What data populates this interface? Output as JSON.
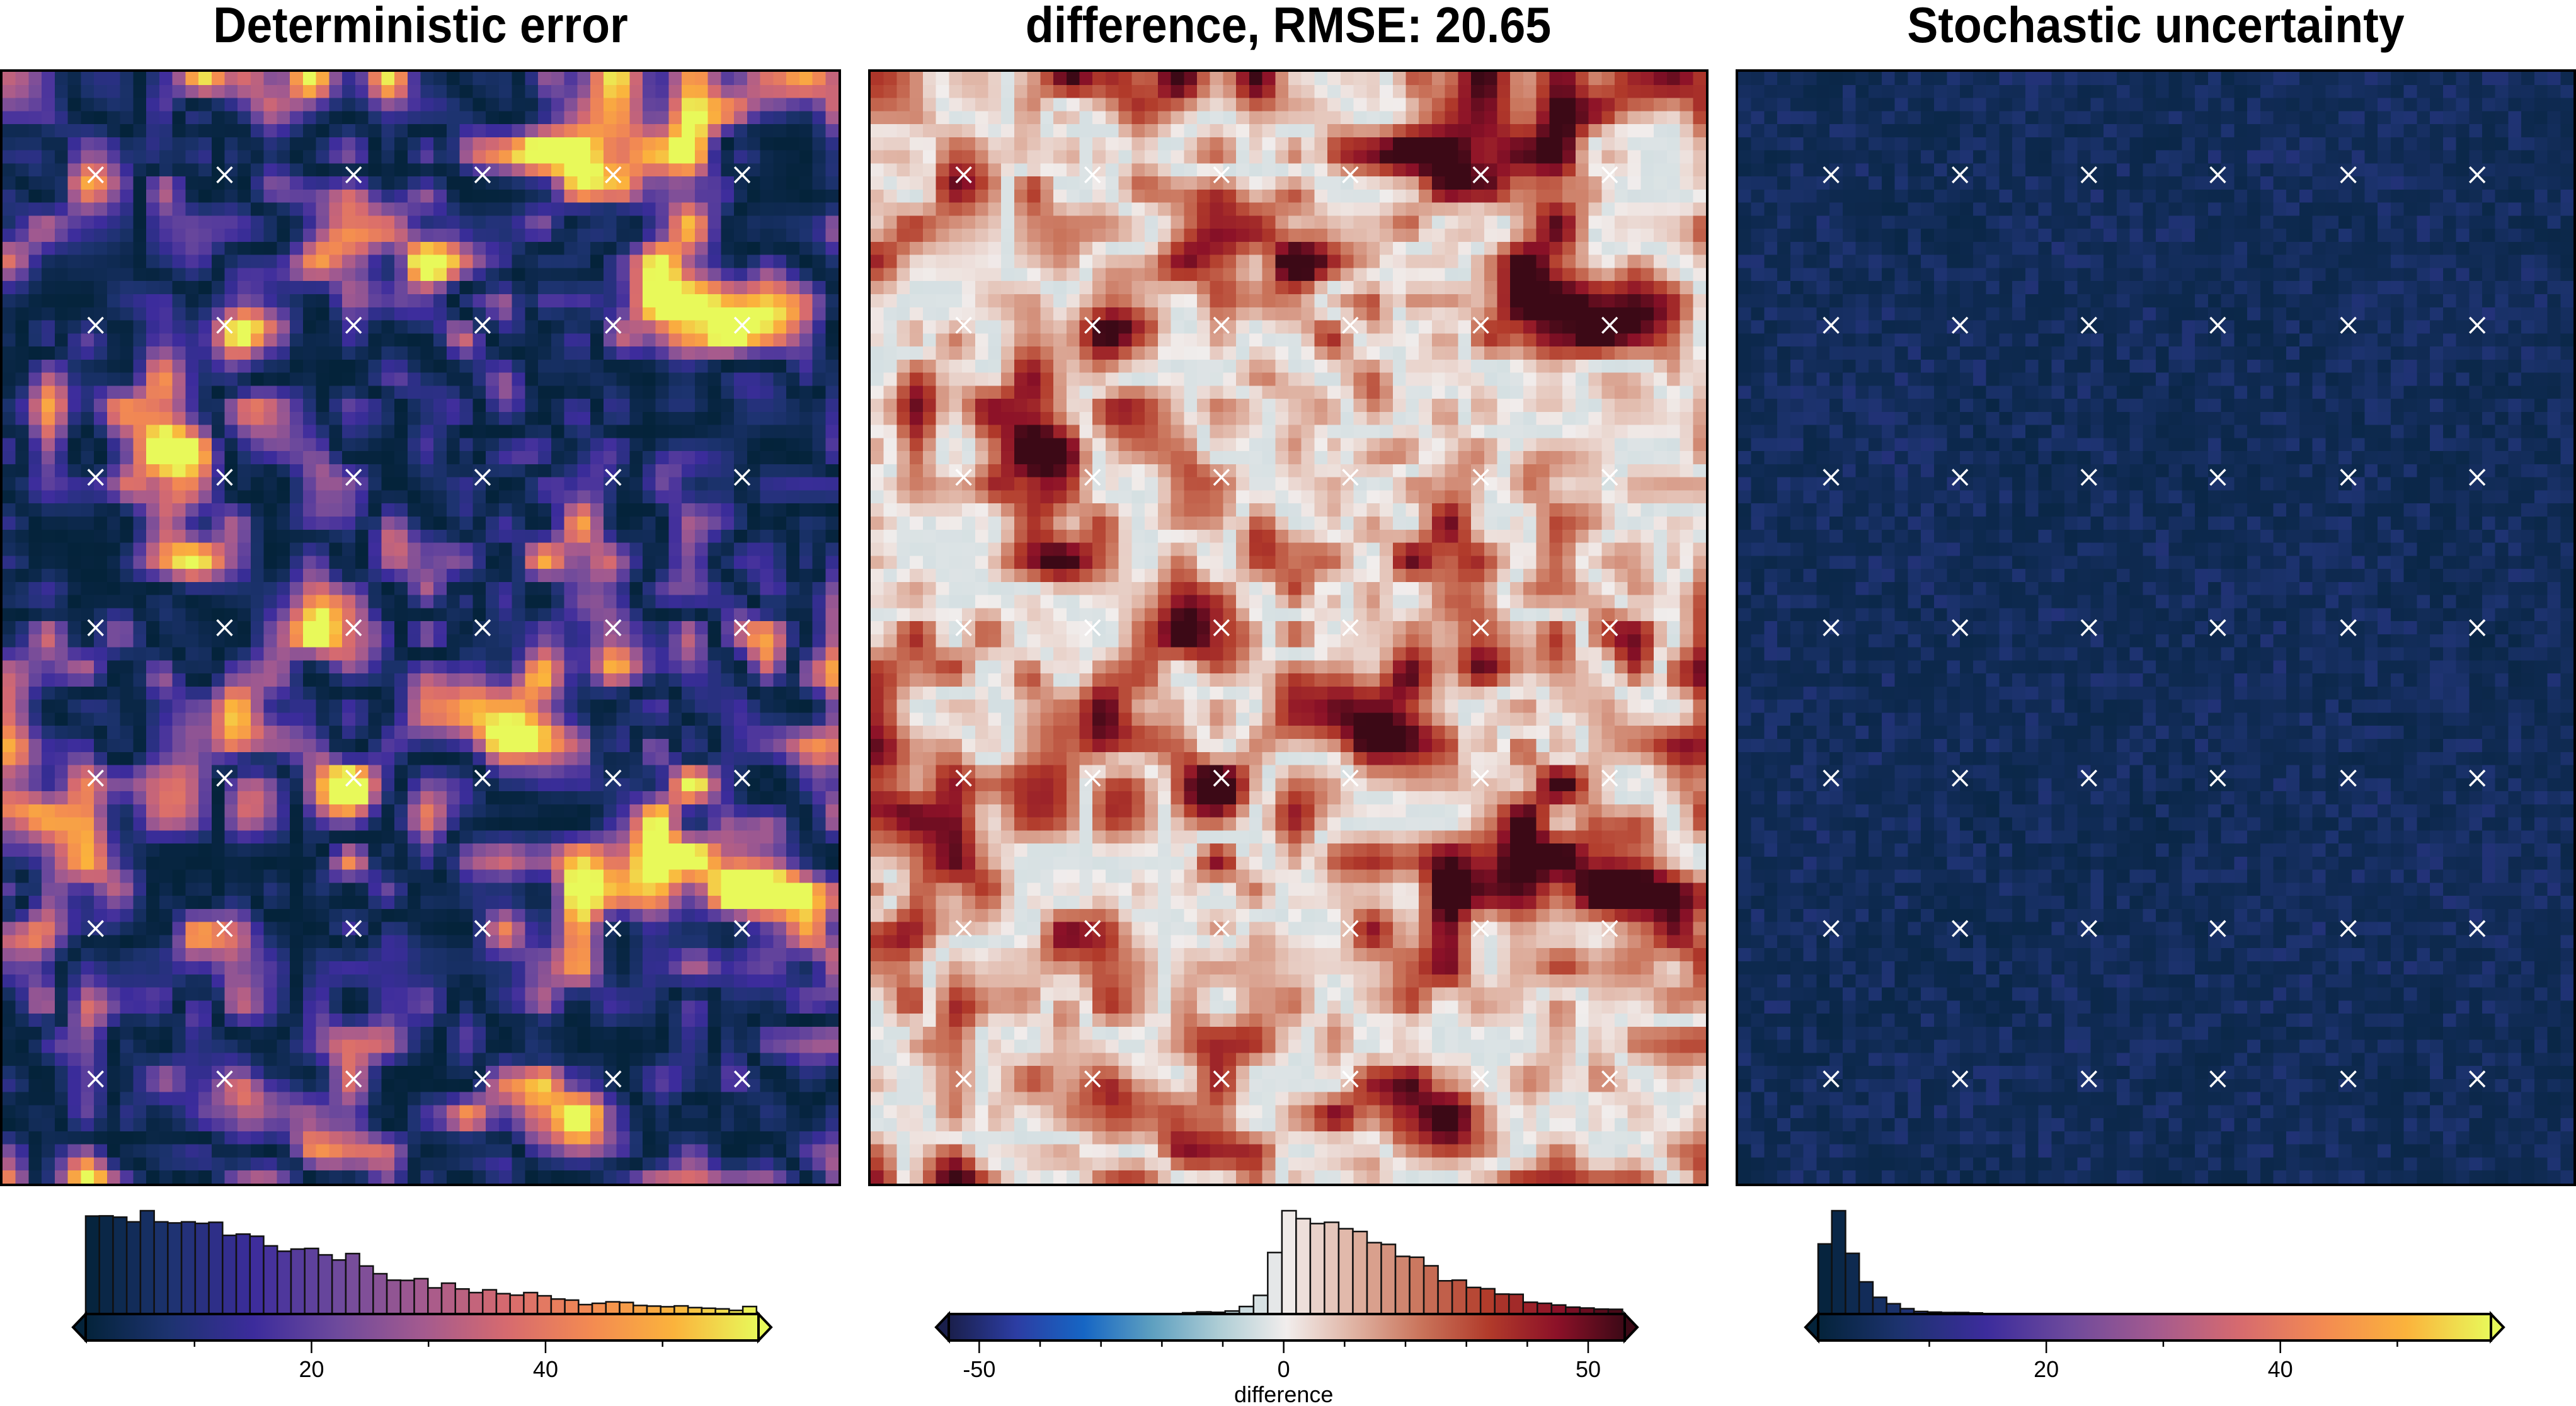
{
  "panels": [
    {
      "title": "Deterministic error",
      "colormap": [
        "#04233a",
        "#1d3370",
        "#3c2c9c",
        "#6e4a9c",
        "#a35a8f",
        "#d66a6f",
        "#f38a52",
        "#fbb33c",
        "#e8f95a"
      ]
    },
    {
      "title": "difference, RMSE: 20.65",
      "colormap": [
        "#1a1f4b",
        "#2c3da3",
        "#1666c4",
        "#5d9fc0",
        "#aecdd5",
        "#f1edec",
        "#dfb2a2",
        "#c9735a",
        "#b13a2a",
        "#8c1128",
        "#3c0916"
      ]
    },
    {
      "title": "Stochastic uncertainty",
      "colormap": [
        "#04233a",
        "#1d3370",
        "#3c2c9c",
        "#6e4a9c",
        "#a35a8f",
        "#d66a6f",
        "#f38a52",
        "#fbb33c",
        "#e8f95a"
      ]
    }
  ],
  "marker_symbol": "×",
  "chart_data": [
    {
      "type": "heatmap",
      "title": "Deterministic error",
      "colorbar": {
        "range": [
          0.7,
          58.2
        ],
        "major_ticks": [
          20,
          40
        ],
        "minor_ticks": [
          10,
          30,
          50
        ],
        "extend": "both",
        "label": ""
      },
      "histogram": {
        "bin_start": 0.7,
        "bin_width": 1.17,
        "relative_heights": [
          457,
          458,
          452,
          430,
          482,
          430,
          425,
          430,
          423,
          428,
          367,
          373,
          363,
          318,
          293,
          303,
          306,
          276,
          252,
          282,
          224,
          188,
          158,
          157,
          165,
          122,
          144,
          117,
          100,
          113,
          95,
          88,
          100,
          85,
          70,
          65,
          44,
          50,
          57,
          54,
          40,
          37,
          34,
          38,
          30,
          27,
          24,
          17,
          35
        ]
      }
    },
    {
      "type": "heatmap",
      "title": "difference, RMSE: 20.65",
      "colorbar": {
        "range": [
          -55,
          56
        ],
        "major_ticks": [
          -50,
          0,
          50
        ],
        "minor_ticks": [
          -40,
          -30,
          -20,
          -10,
          10,
          20,
          30,
          40
        ],
        "extend": "both",
        "label": "difference"
      },
      "histogram": {
        "bin_start": -16.6,
        "bin_width": 2.33,
        "relative_heights": [
          6,
          10,
          8,
          14,
          35,
          87,
          287,
          482,
          445,
          422,
          428,
          398,
          385,
          333,
          325,
          269,
          265,
          225,
          155,
          158,
          124,
          118,
          93,
          92,
          55,
          50,
          42,
          32,
          28,
          23,
          22
        ]
      }
    },
    {
      "type": "heatmap",
      "title": "Stochastic uncertainty",
      "colorbar": {
        "range": [
          0.5,
          58
        ],
        "major_ticks": [
          20,
          40
        ],
        "minor_ticks": [
          10,
          30,
          50
        ],
        "extend": "both",
        "label": ""
      },
      "histogram": {
        "bin_start": 0.5,
        "bin_width": 1.17,
        "relative_heights": [
          327,
          482,
          283,
          150,
          78,
          48,
          25,
          12,
          9,
          7,
          7,
          5
        ]
      }
    }
  ]
}
